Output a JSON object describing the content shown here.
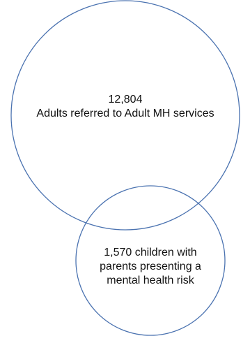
{
  "venn": {
    "adults": {
      "count": "12,804",
      "label": "Adults referred to Adult MH services"
    },
    "children": {
      "line1": "1,570 children with",
      "line2": "parents presenting a",
      "line3": "mental health risk"
    },
    "stroke_color": "#4a72b0"
  }
}
